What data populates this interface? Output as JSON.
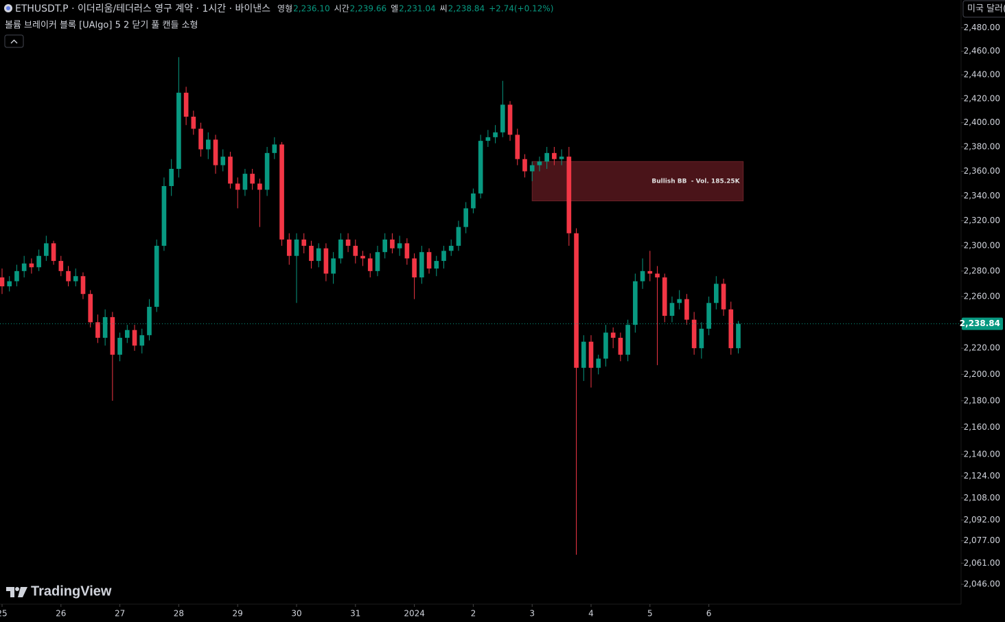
{
  "chart_data": {
    "type": "candlestick",
    "title": "ETHUSDT.P · 이더리움/테더러스 영구 계약 · 1시간 · 바이낸스",
    "ohlc_legend": [
      {
        "label": "영형",
        "value": "2,236.10"
      },
      {
        "label": "시간",
        "value": "2,239.66"
      },
      {
        "label": "엘",
        "value": "2,231.04"
      },
      {
        "label": "씨",
        "value": "2,238.84"
      }
    ],
    "change": "+2.74(+0.12%)",
    "indicator": "볼륨 브레이커 블록 [UAlgo] 5 2 닫기 풀 캔들 소형",
    "currency": "미국 달러(",
    "brand": "TradingView",
    "log_scale": true,
    "grid": false,
    "up_color": "#089981",
    "down_color": "#f23645",
    "xlim": [
      -0.84,
      390.77
    ],
    "ylim": [
      2032,
      2504
    ],
    "xticks": [
      {
        "value": 0,
        "label": "25"
      },
      {
        "value": 24,
        "label": "26"
      },
      {
        "value": 48,
        "label": "27"
      },
      {
        "value": 72,
        "label": "28"
      },
      {
        "value": 96,
        "label": "29"
      },
      {
        "value": 120,
        "label": "30"
      },
      {
        "value": 144,
        "label": "31"
      },
      {
        "value": 168,
        "label": "2024"
      },
      {
        "value": 192,
        "label": "2"
      },
      {
        "value": 216,
        "label": "3"
      },
      {
        "value": 240,
        "label": "4"
      },
      {
        "value": 264,
        "label": "5"
      },
      {
        "value": 288,
        "label": "6"
      }
    ],
    "yticks": [
      {
        "value": 2480,
        "label": "2,480.00"
      },
      {
        "value": 2460,
        "label": "2,460.00"
      },
      {
        "value": 2440,
        "label": "2,440.00"
      },
      {
        "value": 2420,
        "label": "2,420.00"
      },
      {
        "value": 2400,
        "label": "2,400.00"
      },
      {
        "value": 2380,
        "label": "2,380.00"
      },
      {
        "value": 2360,
        "label": "2,360.00"
      },
      {
        "value": 2340,
        "label": "2,340.00"
      },
      {
        "value": 2320,
        "label": "2,320.00"
      },
      {
        "value": 2300,
        "label": "2,300.00"
      },
      {
        "value": 2280,
        "label": "2,280.00"
      },
      {
        "value": 2260,
        "label": "2,260.00"
      },
      {
        "value": 2220,
        "label": "2,220.00"
      },
      {
        "value": 2200,
        "label": "2,200.00"
      },
      {
        "value": 2180,
        "label": "2,180.00"
      },
      {
        "value": 2160,
        "label": "2,160.00"
      },
      {
        "value": 2140,
        "label": "2,140.00"
      },
      {
        "value": 2124,
        "label": "2,124.00"
      },
      {
        "value": 2108,
        "label": "2,108.00"
      },
      {
        "value": 2092,
        "label": "2,092.00"
      },
      {
        "value": 2077,
        "label": "2,077.00"
      },
      {
        "value": 2061,
        "label": "2,061.00"
      },
      {
        "value": 2046,
        "label": "2,046.00"
      }
    ],
    "last_price": {
      "value": 2238.84,
      "label": "2,238.84"
    },
    "zone": {
      "x0": 216,
      "x1": 302,
      "top": 2368,
      "bottom": 2336,
      "label": "Bullish BB  - Vol. 185.25K"
    },
    "x": [
      0,
      3,
      6,
      9,
      12,
      15,
      18,
      21,
      24,
      27,
      30,
      33,
      36,
      39,
      42,
      45,
      48,
      51,
      54,
      57,
      60,
      63,
      66,
      69,
      72,
      75,
      78,
      81,
      84,
      87,
      90,
      93,
      96,
      99,
      102,
      105,
      108,
      111,
      114,
      117,
      120,
      123,
      126,
      129,
      132,
      135,
      138,
      141,
      144,
      147,
      150,
      153,
      156,
      159,
      162,
      165,
      168,
      171,
      174,
      177,
      180,
      183,
      186,
      189,
      192,
      195,
      198,
      201,
      204,
      207,
      210,
      213,
      216,
      219,
      222,
      225,
      228,
      231,
      234,
      237,
      240,
      243,
      246,
      249,
      252,
      255,
      258,
      261,
      264,
      267,
      270,
      273,
      276,
      279,
      282,
      285,
      288,
      291,
      294,
      297,
      300
    ],
    "open": [
      2275,
      2268,
      2272,
      2280,
      2286,
      2283,
      2292,
      2302,
      2288,
      2280,
      2272,
      2276,
      2262,
      2240,
      2228,
      2244,
      2215,
      2228,
      2234,
      2222,
      2230,
      2252,
      2300,
      2348,
      2362,
      2425,
      2405,
      2395,
      2378,
      2386,
      2365,
      2372,
      2350,
      2345,
      2358,
      2350,
      2345,
      2375,
      2382,
      2305,
      2292,
      2305,
      2300,
      2288,
      2298,
      2278,
      2290,
      2305,
      2300,
      2292,
      2290,
      2280,
      2295,
      2305,
      2298,
      2302,
      2290,
      2275,
      2295,
      2282,
      2288,
      2296,
      2300,
      2315,
      2330,
      2342,
      2385,
      2388,
      2392,
      2415,
      2390,
      2370,
      2360,
      2365,
      2368,
      2375,
      2370,
      2372,
      2310,
      2205,
      2225,
      2205,
      2212,
      2232,
      2228,
      2215,
      2238,
      2272,
      2280,
      2278,
      2275,
      2245,
      2255,
      2258,
      2242,
      2220,
      2235,
      2255,
      2270,
      2250,
      2220
    ],
    "high": [
      2282,
      2276,
      2285,
      2292,
      2290,
      2297,
      2308,
      2304,
      2292,
      2284,
      2282,
      2279,
      2265,
      2246,
      2250,
      2248,
      2232,
      2238,
      2238,
      2235,
      2258,
      2305,
      2355,
      2370,
      2455,
      2430,
      2410,
      2400,
      2392,
      2390,
      2378,
      2376,
      2355,
      2362,
      2362,
      2354,
      2380,
      2388,
      2384,
      2310,
      2310,
      2310,
      2304,
      2302,
      2302,
      2295,
      2310,
      2310,
      2305,
      2296,
      2294,
      2300,
      2310,
      2310,
      2308,
      2306,
      2294,
      2300,
      2298,
      2292,
      2300,
      2305,
      2320,
      2335,
      2346,
      2390,
      2394,
      2398,
      2435,
      2418,
      2395,
      2374,
      2368,
      2372,
      2380,
      2380,
      2378,
      2380,
      2314,
      2230,
      2230,
      2215,
      2238,
      2236,
      2232,
      2242,
      2278,
      2290,
      2296,
      2284,
      2278,
      2260,
      2265,
      2262,
      2248,
      2240,
      2260,
      2276,
      2274,
      2256,
      2241
    ],
    "low": [
      2262,
      2264,
      2268,
      2275,
      2278,
      2280,
      2288,
      2285,
      2276,
      2268,
      2268,
      2258,
      2236,
      2224,
      2222,
      2180,
      2210,
      2224,
      2218,
      2216,
      2226,
      2248,
      2296,
      2340,
      2355,
      2398,
      2390,
      2372,
      2370,
      2358,
      2360,
      2346,
      2330,
      2340,
      2345,
      2315,
      2340,
      2370,
      2300,
      2285,
      2255,
      2294,
      2282,
      2283,
      2272,
      2270,
      2286,
      2295,
      2286,
      2284,
      2275,
      2276,
      2290,
      2294,
      2292,
      2285,
      2258,
      2270,
      2278,
      2276,
      2282,
      2292,
      2296,
      2310,
      2326,
      2338,
      2380,
      2383,
      2388,
      2385,
      2365,
      2355,
      2352,
      2360,
      2362,
      2365,
      2365,
      2300,
      2067,
      2195,
      2190,
      2200,
      2206,
      2220,
      2210,
      2210,
      2232,
      2266,
      2272,
      2207,
      2240,
      2240,
      2250,
      2238,
      2215,
      2212,
      2230,
      2250,
      2245,
      2215,
      2216
    ],
    "close": [
      2268,
      2272,
      2280,
      2286,
      2283,
      2292,
      2302,
      2288,
      2280,
      2272,
      2276,
      2262,
      2240,
      2228,
      2244,
      2215,
      2228,
      2234,
      2222,
      2230,
      2252,
      2300,
      2348,
      2362,
      2425,
      2405,
      2395,
      2378,
      2386,
      2365,
      2372,
      2350,
      2345,
      2358,
      2350,
      2345,
      2375,
      2382,
      2305,
      2292,
      2305,
      2300,
      2288,
      2298,
      2278,
      2290,
      2305,
      2300,
      2292,
      2290,
      2280,
      2295,
      2305,
      2298,
      2302,
      2290,
      2275,
      2295,
      2282,
      2288,
      2296,
      2300,
      2315,
      2330,
      2342,
      2385,
      2388,
      2392,
      2415,
      2390,
      2370,
      2360,
      2365,
      2368,
      2375,
      2370,
      2372,
      2310,
      2205,
      2225,
      2205,
      2212,
      2232,
      2228,
      2215,
      2238,
      2272,
      2280,
      2278,
      2275,
      2245,
      2255,
      2258,
      2242,
      2220,
      2235,
      2255,
      2270,
      2250,
      2220,
      2238.84
    ]
  }
}
